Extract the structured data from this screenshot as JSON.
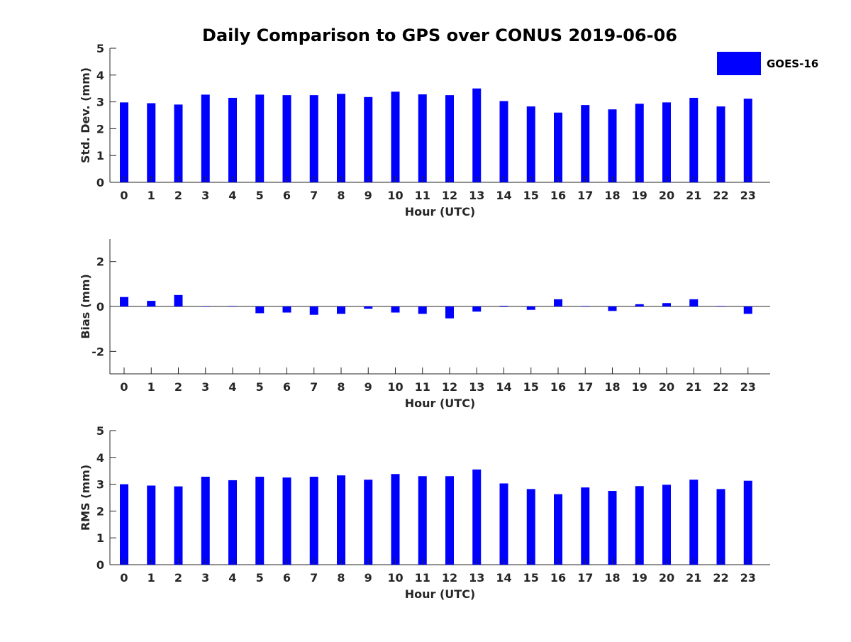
{
  "chart_data": {
    "title": "Daily Comparison to GPS over CONUS 2019-06-06",
    "legend": {
      "label": "GOES-16",
      "color": "#0000ff",
      "placement": "top-right"
    },
    "bar_color": "#0000ff",
    "panels": [
      {
        "type": "bar",
        "ylabel": "Std. Dev. (mm)",
        "xlabel": "Hour (UTC)",
        "ylim": [
          0,
          5
        ],
        "yticks": [
          0,
          1,
          2,
          3,
          4,
          5
        ],
        "ytick_labels": [
          "0",
          "1",
          "2",
          "3",
          "4",
          "5"
        ],
        "categories": [
          "0",
          "1",
          "2",
          "3",
          "4",
          "5",
          "6",
          "7",
          "8",
          "9",
          "10",
          "11",
          "12",
          "13",
          "14",
          "15",
          "16",
          "17",
          "18",
          "19",
          "20",
          "21",
          "22",
          "23"
        ],
        "values": [
          2.98,
          2.95,
          2.9,
          3.27,
          3.15,
          3.27,
          3.25,
          3.25,
          3.3,
          3.18,
          3.38,
          3.28,
          3.25,
          3.5,
          3.03,
          2.83,
          2.6,
          2.88,
          2.72,
          2.93,
          2.98,
          3.15,
          2.83,
          3.12
        ],
        "zero_line": false
      },
      {
        "type": "bar",
        "ylabel": "Bias (mm)",
        "xlabel": "Hour (UTC)",
        "ylim": [
          -3,
          3
        ],
        "yticks": [
          -2,
          0,
          2
        ],
        "ytick_labels": [
          "-2",
          "0",
          "2"
        ],
        "categories": [
          "0",
          "1",
          "2",
          "3",
          "4",
          "5",
          "6",
          "7",
          "8",
          "9",
          "10",
          "11",
          "12",
          "13",
          "14",
          "15",
          "16",
          "17",
          "18",
          "19",
          "20",
          "21",
          "22",
          "23"
        ],
        "values": [
          0.42,
          0.25,
          0.51,
          0.0,
          0.02,
          -0.3,
          -0.27,
          -0.37,
          -0.33,
          -0.1,
          -0.27,
          -0.33,
          -0.53,
          -0.23,
          0.03,
          -0.15,
          0.32,
          0.02,
          -0.2,
          0.1,
          0.15,
          0.32,
          0.02,
          -0.33
        ],
        "zero_line": true
      },
      {
        "type": "bar",
        "ylabel": "RMS (mm)",
        "xlabel": "Hour (UTC)",
        "ylim": [
          0,
          5
        ],
        "yticks": [
          0,
          1,
          2,
          3,
          4,
          5
        ],
        "ytick_labels": [
          "0",
          "1",
          "2",
          "3",
          "4",
          "5"
        ],
        "categories": [
          "0",
          "1",
          "2",
          "3",
          "4",
          "5",
          "6",
          "7",
          "8",
          "9",
          "10",
          "11",
          "12",
          "13",
          "14",
          "15",
          "16",
          "17",
          "18",
          "19",
          "20",
          "21",
          "22",
          "23"
        ],
        "values": [
          3.0,
          2.95,
          2.92,
          3.28,
          3.15,
          3.28,
          3.25,
          3.28,
          3.33,
          3.17,
          3.38,
          3.3,
          3.3,
          3.55,
          3.03,
          2.82,
          2.63,
          2.88,
          2.75,
          2.93,
          2.98,
          3.17,
          2.82,
          3.13
        ],
        "zero_line": false
      }
    ]
  }
}
